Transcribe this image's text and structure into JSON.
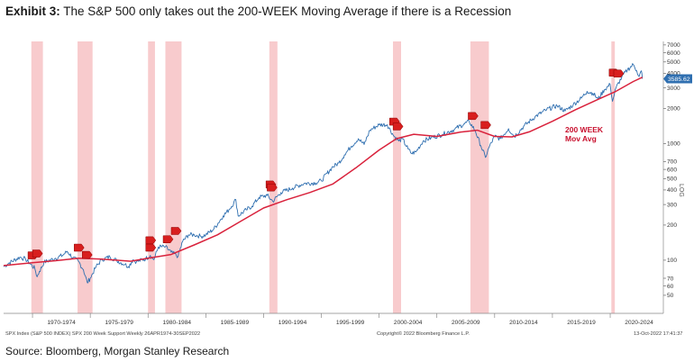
{
  "header": {
    "exhibit_label": "Exhibit 3:",
    "title": "The S&P 500 only takes out the 200-WEEK Moving Average if there is a Recession"
  },
  "source": "Source: Bloomberg, Morgan Stanley Research",
  "colors": {
    "price": "#2f6fb0",
    "moving_average": "#d9223c",
    "recession_band": "#f7c2c4",
    "marker": "#d81e1e",
    "last_value_tag": "#2f6fb0"
  },
  "chart_data": {
    "type": "line",
    "title": "The S&P 500 only takes out the 200-WEEK Moving Average if there is a Recession",
    "y_scale": "log",
    "ylim": [
      35,
      7500
    ],
    "xlim": [
      1967.5,
      2024.6
    ],
    "y_ticks": [
      50,
      60,
      70,
      100,
      200,
      300,
      400,
      500,
      600,
      700,
      1000,
      2000,
      3000,
      4000,
      5000,
      6000,
      7000
    ],
    "x_tick_labels": [
      {
        "label": "1970-1974",
        "x": 1972.5
      },
      {
        "label": "1975-1979",
        "x": 1977.5
      },
      {
        "label": "1980-1984",
        "x": 1982.5
      },
      {
        "label": "1985-1989",
        "x": 1987.5
      },
      {
        "label": "1990-1994",
        "x": 1992.5
      },
      {
        "label": "1995-1999",
        "x": 1997.5
      },
      {
        "label": "2000-2004",
        "x": 2002.5
      },
      {
        "label": "2005-2009",
        "x": 2007.5
      },
      {
        "label": "2010-2014",
        "x": 2012.5
      },
      {
        "label": "2015-2019",
        "x": 2017.5
      },
      {
        "label": "2020-2024",
        "x": 2022.5
      }
    ],
    "recessions": [
      [
        1969.9,
        1970.9
      ],
      [
        1973.9,
        1975.2
      ],
      [
        1980.0,
        1980.6
      ],
      [
        1981.5,
        1982.9
      ],
      [
        1990.5,
        1991.2
      ],
      [
        2001.2,
        2001.9
      ],
      [
        2007.9,
        2009.5
      ],
      [
        2020.1,
        2020.4
      ]
    ],
    "markers": [
      {
        "x": 1970.0,
        "y": 110
      },
      {
        "x": 1970.4,
        "y": 114
      },
      {
        "x": 1974.0,
        "y": 128
      },
      {
        "x": 1974.7,
        "y": 111
      },
      {
        "x": 1980.2,
        "y": 148
      },
      {
        "x": 1980.2,
        "y": 128
      },
      {
        "x": 1981.7,
        "y": 151
      },
      {
        "x": 1982.4,
        "y": 178
      },
      {
        "x": 1990.6,
        "y": 445
      },
      {
        "x": 1990.7,
        "y": 420
      },
      {
        "x": 2001.3,
        "y": 1540
      },
      {
        "x": 2001.6,
        "y": 1400
      },
      {
        "x": 2008.1,
        "y": 1720
      },
      {
        "x": 2009.2,
        "y": 1440
      },
      {
        "x": 2020.3,
        "y": 4050
      },
      {
        "x": 2020.7,
        "y": 3980
      }
    ],
    "series": [
      {
        "name": "SPX Index (S&P 500 INDEX)",
        "x": [
          1967.5,
          1968.0,
          1968.9,
          1969.4,
          1969.8,
          1970.2,
          1970.4,
          1970.6,
          1971.0,
          1971.5,
          1972.0,
          1972.6,
          1973.0,
          1973.5,
          1974.0,
          1974.4,
          1974.75,
          1975.0,
          1975.5,
          1976.0,
          1976.7,
          1977.3,
          1978.0,
          1978.3,
          1978.7,
          1979.0,
          1979.8,
          1980.2,
          1980.5,
          1980.9,
          1981.5,
          1982.0,
          1982.6,
          1983.0,
          1983.5,
          1984.0,
          1984.6,
          1985.0,
          1985.7,
          1986.5,
          1987.0,
          1987.6,
          1987.8,
          1988.5,
          1989.0,
          1989.6,
          1990.3,
          1990.8,
          1991.5,
          1992.5,
          1993.5,
          1994.5,
          1995.0,
          1995.9,
          1996.5,
          1997.0,
          1997.6,
          1998.2,
          1998.7,
          1999.2,
          2000.0,
          2000.7,
          2001.3,
          2001.7,
          2002.0,
          2002.5,
          2002.8,
          2003.2,
          2003.8,
          2004.5,
          2005.5,
          2006.5,
          2007.4,
          2007.8,
          2008.3,
          2008.8,
          2009.2,
          2009.5,
          2010.0,
          2010.5,
          2011.2,
          2011.7,
          2012.5,
          2013.5,
          2014.5,
          2015.4,
          2016.1,
          2016.8,
          2017.5,
          2018.0,
          2018.5,
          2018.95,
          2019.5,
          2020.0,
          2020.2,
          2020.5,
          2021.0,
          2021.5,
          2022.0,
          2022.3,
          2022.5,
          2022.7,
          2022.78
        ],
        "y": [
          88,
          95,
          106,
          102,
          93,
          85,
          72,
          80,
          96,
          100,
          104,
          110,
          119,
          105,
          97,
          83,
          64,
          70,
          88,
          101,
          107,
          99,
          92,
          88,
          101,
          97,
          103,
          110,
          101,
          130,
          130,
          117,
          108,
          145,
          165,
          165,
          160,
          165,
          185,
          240,
          270,
          330,
          240,
          270,
          290,
          345,
          360,
          320,
          380,
          415,
          455,
          460,
          480,
          620,
          680,
          800,
          950,
          1100,
          980,
          1300,
          1450,
          1450,
          1150,
          1050,
          1100,
          900,
          820,
          850,
          1050,
          1120,
          1200,
          1320,
          1480,
          1540,
          1300,
          960,
          760,
          920,
          1150,
          1100,
          1340,
          1150,
          1400,
          1700,
          1950,
          2110,
          1900,
          2150,
          2450,
          2800,
          2700,
          2400,
          2900,
          3200,
          2300,
          3000,
          3700,
          4300,
          4750,
          4200,
          3750,
          4200,
          3585.62
        ]
      },
      {
        "name": "SPX 200 Week Support",
        "x": [
          1967.5,
          1970.0,
          1972.0,
          1974.0,
          1976.0,
          1978.5,
          1980.0,
          1982.0,
          1984.0,
          1986.0,
          1988.0,
          1990.0,
          1992.0,
          1994.0,
          1996.0,
          1998.0,
          2000.0,
          2001.5,
          2003.0,
          2005.0,
          2007.0,
          2008.5,
          2010.0,
          2011.5,
          2013.0,
          2015.0,
          2017.0,
          2019.0,
          2020.5,
          2022.0,
          2022.78
        ],
        "y": [
          90,
          95,
          99,
          104,
          102,
          98,
          104,
          112,
          135,
          165,
          215,
          280,
          330,
          380,
          450,
          620,
          880,
          1100,
          1200,
          1150,
          1250,
          1300,
          1150,
          1140,
          1260,
          1550,
          1950,
          2400,
          2800,
          3400,
          3700
        ]
      }
    ],
    "last_value_label": "3585.62",
    "annotations": [
      "200 WEEK",
      "Mov Avg"
    ],
    "footer_left": "SPX Index (S&P 500 INDEX) SPX 200 Week Support  Weekly 26APR1974-30SEP2022",
    "footer_center": "Copyright© 2022 Bloomberg Finance L.P.",
    "footer_right": "13-Oct-2022 17:41:37",
    "axis_label_right": "LOG"
  }
}
